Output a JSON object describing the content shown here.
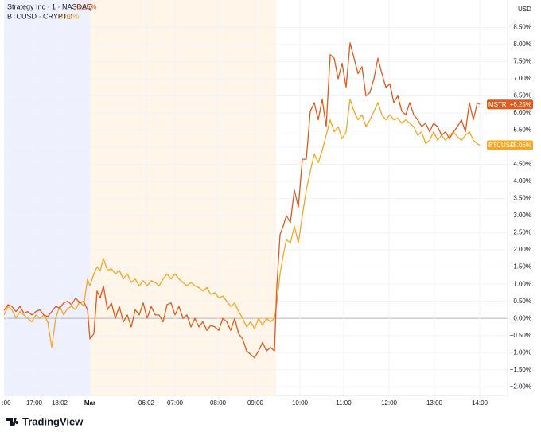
{
  "chart_data": {
    "type": "line",
    "currency": "USD",
    "brand": "TradingView",
    "x": [
      0,
      5,
      10,
      15,
      20,
      25,
      30,
      35,
      40,
      45,
      50,
      55,
      60,
      65,
      70,
      75,
      80,
      85,
      90,
      95,
      100,
      105,
      108,
      113,
      117,
      121,
      125,
      130,
      135,
      140,
      145,
      150,
      155,
      160,
      165,
      170,
      175,
      180,
      185,
      190,
      195,
      200,
      205,
      210,
      215,
      220,
      225,
      230,
      235,
      240,
      245,
      250,
      255,
      260,
      265,
      270,
      275,
      280,
      285,
      290,
      295,
      300,
      305,
      310,
      315,
      320,
      325,
      330,
      335,
      340,
      343,
      347,
      351,
      355,
      360,
      365,
      370,
      375,
      380,
      385,
      390,
      395,
      400,
      405,
      410,
      415,
      420,
      425,
      430,
      435,
      440,
      445,
      450,
      455,
      460,
      465,
      470,
      475,
      480,
      485,
      490,
      495,
      500,
      505,
      510,
      515,
      520,
      525,
      530,
      535,
      540,
      545,
      550,
      555,
      560,
      565,
      570,
      575,
      580,
      585,
      590,
      595,
      598
    ],
    "series": [
      {
        "name": "Strategy Inc · 1 · NASDAQ",
        "legend_value": "6.25%",
        "symbol": "MSTR",
        "last_label": "+6.25%",
        "color": "#e05a1c",
        "values": [
          0.23,
          0.4,
          0.35,
          0.2,
          0.35,
          0.15,
          0.2,
          0.1,
          0.2,
          0.25,
          0.1,
          0.05,
          0.2,
          0.35,
          0.3,
          0.45,
          0.5,
          0.4,
          0.6,
          0.45,
          0.5,
          0.25,
          -0.6,
          -0.45,
          0.8,
          0.6,
          0.95,
          0.25,
          0.45,
          0,
          0.35,
          -0.1,
          0.1,
          -0.25,
          0.25,
          0.1,
          0.45,
          0,
          0.35,
          0.1,
          0.1,
          -0.1,
          0.4,
          0.45,
          0.1,
          0.35,
          0,
          0.1,
          -0.25,
          0,
          -0.25,
          -0.1,
          -0.35,
          -0.2,
          -0.25,
          -0.35,
          0,
          -0.1,
          -0.35,
          0,
          -0.45,
          -0.6,
          -0.95,
          -1.05,
          -1.15,
          -0.95,
          -0.7,
          -0.95,
          -0.85,
          -0.95,
          0.95,
          2.45,
          2.7,
          3.0,
          2.8,
          3.75,
          3.25,
          4.65,
          4.65,
          6.05,
          6.3,
          5.8,
          6.4,
          5.6,
          7.7,
          7.6,
          7.0,
          7.45,
          6.75,
          8.05,
          7.6,
          7.15,
          7.35,
          6.5,
          6.6,
          7.0,
          7.6,
          7.15,
          6.75,
          6.85,
          6.3,
          6.5,
          6.05,
          5.95,
          6.3,
          5.95,
          5.8,
          5.6,
          5.7,
          5.45,
          5.7,
          5.6,
          5.35,
          5.45,
          5.25,
          5.45,
          5.6,
          5.8,
          5.45,
          6.3,
          5.8,
          6.3,
          6.25
        ]
      },
      {
        "name": "BTCUSD · CRYPTO",
        "legend_value": "5.06%",
        "symbol": "BTCUSD",
        "last_label": "+5.06%",
        "color": "#f5a623",
        "values": [
          0.1,
          0.35,
          0.25,
          0,
          0.2,
          0.1,
          0,
          -0.1,
          0.1,
          0,
          0.1,
          -0.1,
          -0.85,
          0,
          0.35,
          0.1,
          0.3,
          0.35,
          0.25,
          0.5,
          0.35,
          1.15,
          0.95,
          1.3,
          1.5,
          1.4,
          1.75,
          1.4,
          1.45,
          1.3,
          1.4,
          1.15,
          1.3,
          1.05,
          1.15,
          0.95,
          1.1,
          0.95,
          1.1,
          1.05,
          0.95,
          1.15,
          1.3,
          1.15,
          1.3,
          1.15,
          1.05,
          0.95,
          1.05,
          0.95,
          0.9,
          0.8,
          0.9,
          0.7,
          0.75,
          0.6,
          0.65,
          0.5,
          0.35,
          0.45,
          0.2,
          0,
          -0.25,
          -0.1,
          -0.3,
          0,
          -0.2,
          0,
          -0.1,
          0,
          0.45,
          1.3,
          1.85,
          2.3,
          2.2,
          2.7,
          2.2,
          3.0,
          3.75,
          4.3,
          4.8,
          4.55,
          4.9,
          5.35,
          5.8,
          5.45,
          5.6,
          5.25,
          5.45,
          6.4,
          6.05,
          5.8,
          5.95,
          5.6,
          5.8,
          6.05,
          6.3,
          5.95,
          5.8,
          5.95,
          5.8,
          5.85,
          5.7,
          5.8,
          5.7,
          5.6,
          5.35,
          5.45,
          5.1,
          5.2,
          5.45,
          5.2,
          5.35,
          5.2,
          5.35,
          5.45,
          5.3,
          5.2,
          5.35,
          5.45,
          5.2,
          5.1,
          5.06
        ]
      }
    ],
    "xlim": [
      0,
      633
    ],
    "xticks": [
      {
        "value": 3,
        "label": ":00"
      },
      {
        "value": 38,
        "label": "17:00"
      },
      {
        "value": 70,
        "label": "18:02"
      },
      {
        "value": 108,
        "label": "Mar"
      },
      {
        "value": 179,
        "label": "06:02"
      },
      {
        "value": 215,
        "label": "07:00"
      },
      {
        "value": 269,
        "label": "08:00"
      },
      {
        "value": 316,
        "label": "09:00"
      },
      {
        "value": 372,
        "label": "10:00"
      },
      {
        "value": 427,
        "label": "11:00"
      },
      {
        "value": 484,
        "label": "12:00"
      },
      {
        "value": 541,
        "label": "13:00"
      },
      {
        "value": 598,
        "label": "14:00"
      }
    ],
    "ylim": [
      -2.25,
      9.3
    ],
    "yticks": [
      {
        "value": 8.5,
        "label": "8.50%"
      },
      {
        "value": 8,
        "label": "8.00%"
      },
      {
        "value": 7.5,
        "label": "7.50%"
      },
      {
        "value": 7,
        "label": "7.00%"
      },
      {
        "value": 6.5,
        "label": "6.50%"
      },
      {
        "value": 6,
        "label": "6.00%"
      },
      {
        "value": 5.5,
        "label": "5.50%"
      },
      {
        "value": 5,
        "label": "5.00%"
      },
      {
        "value": 4.5,
        "label": "4.50%"
      },
      {
        "value": 4,
        "label": "4.00%"
      },
      {
        "value": 3.5,
        "label": "3.50%"
      },
      {
        "value": 3,
        "label": "3.00%"
      },
      {
        "value": 2.5,
        "label": "2.50%"
      },
      {
        "value": 2,
        "label": "2.00%"
      },
      {
        "value": 1.5,
        "label": "1.50%"
      },
      {
        "value": 1,
        "label": "1.00%"
      },
      {
        "value": 0.5,
        "label": "0.50%"
      },
      {
        "value": 0,
        "label": "0.00%"
      },
      {
        "value": -0.5,
        "label": "−0.50%"
      },
      {
        "value": -1,
        "label": "−1.00%"
      },
      {
        "value": -1.5,
        "label": "−1.50%"
      },
      {
        "value": -2,
        "label": "−2.00%"
      }
    ],
    "grid": true
  }
}
